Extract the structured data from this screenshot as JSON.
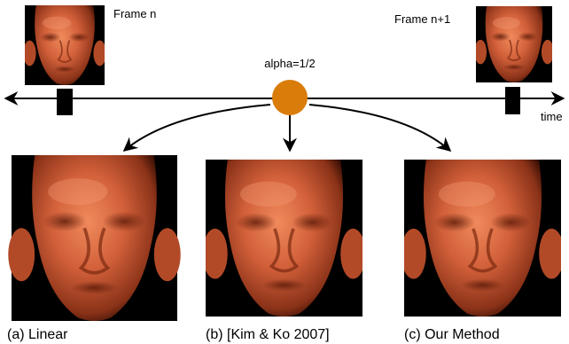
{
  "frames": [
    {
      "label": "Frame n"
    },
    {
      "label": "Frame n+1"
    }
  ],
  "alpha_label": "alpha=1/2",
  "axis_label": "time",
  "results": [
    {
      "caption": "(a) Linear"
    },
    {
      "caption": "(b) [Kim & Ko 2007]"
    },
    {
      "caption": "(c) Our Method"
    }
  ]
}
